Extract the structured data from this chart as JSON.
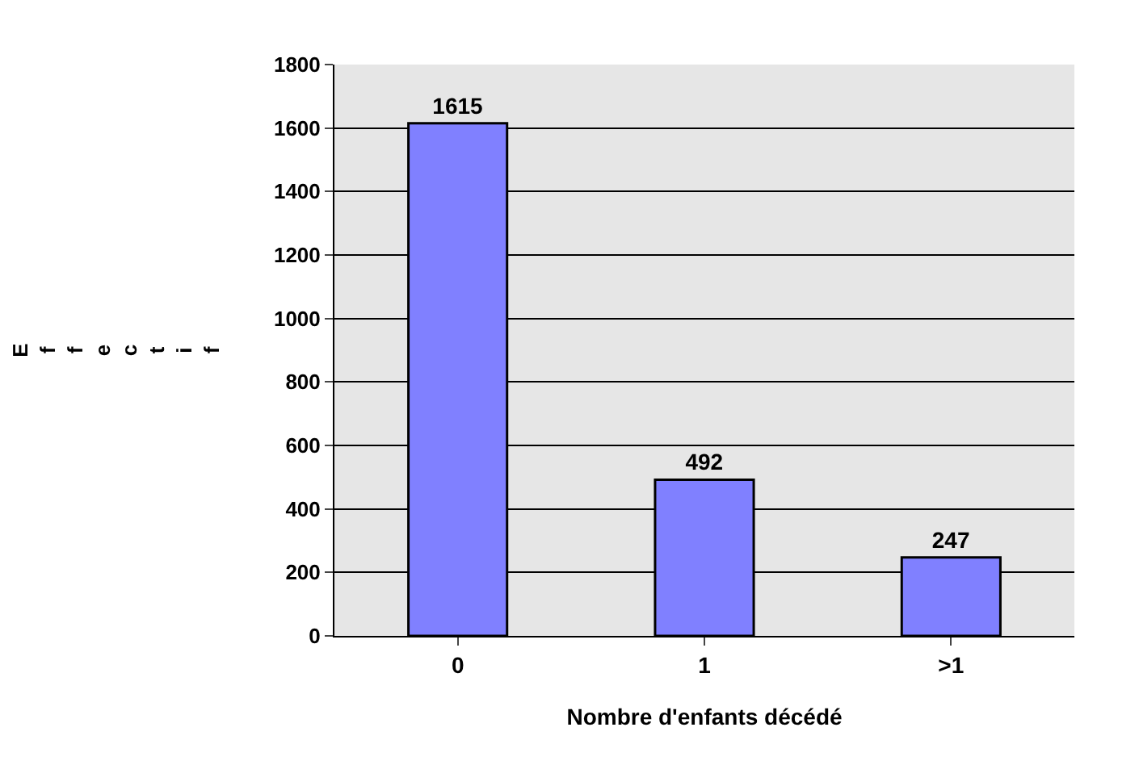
{
  "chart_data": {
    "type": "bar",
    "xlabel": "Nombre d'enfants décédé",
    "ylabel": "Effectif",
    "categories": [
      "0",
      "1",
      ">1"
    ],
    "values": [
      1615,
      492,
      247
    ],
    "color": "#8080ff",
    "ylim": [
      0,
      1800
    ],
    "yticks": [
      0,
      200,
      400,
      600,
      800,
      1000,
      1200,
      1400,
      1600,
      1800
    ],
    "grid": "y",
    "data_labels": true
  }
}
